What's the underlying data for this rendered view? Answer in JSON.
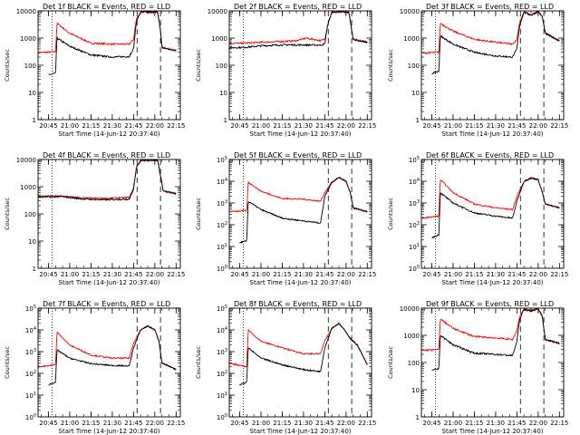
{
  "figure": {
    "xlabel": "Start Time (14-Jun-12 20:37:40)",
    "ylabel": "Counts/sec",
    "x_ticks": [
      "20:45",
      "21:00",
      "21:15",
      "21:30",
      "21:45",
      "22:00",
      "22:15"
    ],
    "colors": {
      "events": "#000000",
      "lld": "#ff0000",
      "axes": "#000000"
    }
  },
  "chart_data": [
    {
      "type": "line",
      "title": "Det 1f BLACK = Events, RED = LLD",
      "yscale": "log",
      "ylim": [
        1,
        10000
      ],
      "y_ticks": [
        "1",
        "10",
        "100",
        "1000",
        "10000"
      ],
      "xlim": [
        "20:37:40",
        "22:18:00"
      ],
      "dotted_x": [
        "20:47:30"
      ],
      "dashed_x": [
        "21:47:30",
        "22:04:00"
      ],
      "lld_points": [
        [
          "20:37:40",
          290
        ],
        [
          "20:50:00",
          310
        ],
        [
          "20:51:00",
          3500
        ],
        [
          "21:00:00",
          1500
        ],
        [
          "21:15:00",
          650
        ],
        [
          "21:30:00",
          600
        ],
        [
          "21:42:00",
          600
        ],
        [
          "21:45:00",
          900
        ],
        [
          "21:47:00",
          5000
        ],
        [
          "21:50:00",
          9000
        ],
        [
          "22:02:00",
          9000
        ],
        [
          "22:04:00",
          2000
        ],
        [
          "22:05:00",
          450
        ],
        [
          "22:15:00",
          350
        ]
      ],
      "events_points": [
        [
          "20:45:00",
          45
        ],
        [
          "20:50:00",
          50
        ],
        [
          "20:51:00",
          1000
        ],
        [
          "21:00:00",
          500
        ],
        [
          "21:15:00",
          240
        ],
        [
          "21:30:00",
          200
        ],
        [
          "21:42:00",
          210
        ],
        [
          "21:45:00",
          400
        ],
        [
          "21:47:00",
          4000
        ],
        [
          "21:50:00",
          9000
        ],
        [
          "22:02:00",
          9000
        ],
        [
          "22:04:00",
          2000
        ],
        [
          "22:05:00",
          450
        ],
        [
          "22:15:00",
          350
        ]
      ]
    },
    {
      "type": "line",
      "title": "Det 2f BLACK = Events, RED = LLD",
      "yscale": "log",
      "ylim": [
        1,
        10000
      ],
      "y_ticks": [
        "1",
        "10",
        "100",
        "1000",
        "10000"
      ],
      "xlim": [
        "20:37:40",
        "22:18:00"
      ],
      "dotted_x": [
        "20:47:30"
      ],
      "dashed_x": [
        "21:47:30",
        "22:04:00"
      ],
      "lld_points": [
        [
          "20:37:40",
          640
        ],
        [
          "20:50:00",
          650
        ],
        [
          "21:00:00",
          700
        ],
        [
          "21:15:00",
          750
        ],
        [
          "21:25:00",
          800
        ],
        [
          "21:32:00",
          1000
        ],
        [
          "21:42:00",
          800
        ],
        [
          "21:45:00",
          900
        ],
        [
          "21:47:00",
          3000
        ],
        [
          "21:50:00",
          9000
        ],
        [
          "22:02:00",
          9000
        ],
        [
          "22:04:00",
          2000
        ],
        [
          "22:05:00",
          900
        ],
        [
          "22:15:00",
          700
        ]
      ],
      "events_points": [
        [
          "20:37:40",
          440
        ],
        [
          "20:50:00",
          460
        ],
        [
          "21:00:00",
          520
        ],
        [
          "21:15:00",
          560
        ],
        [
          "21:30:00",
          560
        ],
        [
          "21:42:00",
          550
        ],
        [
          "21:45:00",
          600
        ],
        [
          "21:47:00",
          3000
        ],
        [
          "21:50:00",
          9000
        ],
        [
          "22:02:00",
          9000
        ],
        [
          "22:04:00",
          2000
        ],
        [
          "22:05:00",
          900
        ],
        [
          "22:15:00",
          700
        ]
      ]
    },
    {
      "type": "line",
      "title": "Det 3f BLACK = Events, RED = LLD",
      "yscale": "log",
      "ylim": [
        1,
        10000
      ],
      "y_ticks": [
        "1",
        "10",
        "100",
        "1000",
        "10000"
      ],
      "xlim": [
        "20:37:40",
        "22:18:00"
      ],
      "dotted_x": [
        "20:47:30"
      ],
      "dashed_x": [
        "21:47:30",
        "22:04:00"
      ],
      "lld_points": [
        [
          "20:37:40",
          280
        ],
        [
          "20:50:00",
          300
        ],
        [
          "20:51:00",
          3500
        ],
        [
          "21:00:00",
          1800
        ],
        [
          "21:15:00",
          900
        ],
        [
          "21:30:00",
          700
        ],
        [
          "21:42:00",
          600
        ],
        [
          "21:45:00",
          900
        ],
        [
          "21:47:00",
          4000
        ],
        [
          "21:50:00",
          9000
        ],
        [
          "21:55:00",
          7000
        ],
        [
          "22:00:00",
          9500
        ],
        [
          "22:03:00",
          6000
        ],
        [
          "22:05:00",
          1500
        ],
        [
          "22:15:00",
          800
        ]
      ],
      "events_points": [
        [
          "20:45:00",
          50
        ],
        [
          "20:50:00",
          60
        ],
        [
          "20:51:00",
          1200
        ],
        [
          "21:00:00",
          600
        ],
        [
          "21:15:00",
          300
        ],
        [
          "21:30:00",
          220
        ],
        [
          "21:42:00",
          200
        ],
        [
          "21:45:00",
          400
        ],
        [
          "21:47:00",
          3000
        ],
        [
          "21:50:00",
          9000
        ],
        [
          "21:55:00",
          7000
        ],
        [
          "22:00:00",
          9500
        ],
        [
          "22:03:00",
          6000
        ],
        [
          "22:05:00",
          1500
        ],
        [
          "22:15:00",
          800
        ]
      ]
    },
    {
      "type": "line",
      "title": "Det 4f BLACK = Events, RED = LLD",
      "yscale": "log",
      "ylim": [
        1,
        10000
      ],
      "y_ticks": [
        "1",
        "10",
        "100",
        "1000",
        "10000"
      ],
      "xlim": [
        "20:37:40",
        "22:18:00"
      ],
      "dotted_x": [
        "20:47:30"
      ],
      "dashed_x": [
        "21:47:30",
        "22:04:00"
      ],
      "lld_points": [
        [
          "20:37:40",
          450
        ],
        [
          "20:55:00",
          450
        ],
        [
          "21:10:00",
          380
        ],
        [
          "21:25:00",
          370
        ],
        [
          "21:42:00",
          400
        ],
        [
          "21:45:00",
          900
        ],
        [
          "21:47:00",
          5000
        ],
        [
          "21:50:00",
          9500
        ],
        [
          "22:02:00",
          9500
        ],
        [
          "22:04:00",
          2500
        ],
        [
          "22:06:00",
          700
        ],
        [
          "22:15:00",
          550
        ]
      ],
      "events_points": [
        [
          "20:37:40",
          420
        ],
        [
          "20:55:00",
          430
        ],
        [
          "21:10:00",
          350
        ],
        [
          "21:25:00",
          330
        ],
        [
          "21:42:00",
          350
        ],
        [
          "21:45:00",
          800
        ],
        [
          "21:47:00",
          5000
        ],
        [
          "21:50:00",
          9500
        ],
        [
          "22:02:00",
          9500
        ],
        [
          "22:04:00",
          2500
        ],
        [
          "22:06:00",
          700
        ],
        [
          "22:15:00",
          550
        ]
      ]
    },
    {
      "type": "line",
      "title": "Det 5f BLACK = Events, RED = LLD",
      "yscale": "log",
      "ylim": [
        1,
        100000
      ],
      "y_ticks": [
        "10^0",
        "10^1",
        "10^2",
        "10^3",
        "10^4",
        "10^5"
      ],
      "xlim": [
        "20:37:40",
        "22:18:00"
      ],
      "dotted_x": [
        "20:47:30"
      ],
      "dashed_x": [
        "21:47:30",
        "22:04:00"
      ],
      "lld_points": [
        [
          "20:37:40",
          400
        ],
        [
          "20:50:00",
          450
        ],
        [
          "20:51:00",
          9000
        ],
        [
          "21:00:00",
          3500
        ],
        [
          "21:15:00",
          1600
        ],
        [
          "21:30:00",
          1500
        ],
        [
          "21:42:00",
          1200
        ],
        [
          "21:45:00",
          3000
        ],
        [
          "21:50:00",
          9000
        ],
        [
          "21:55:00",
          15000
        ],
        [
          "22:00:00",
          10000
        ],
        [
          "22:03:00",
          3000
        ],
        [
          "22:05:00",
          600
        ],
        [
          "22:15:00",
          400
        ]
      ],
      "events_points": [
        [
          "20:45:00",
          15
        ],
        [
          "20:50:00",
          18
        ],
        [
          "20:51:00",
          1200
        ],
        [
          "21:00:00",
          500
        ],
        [
          "21:15:00",
          200
        ],
        [
          "21:30:00",
          150
        ],
        [
          "21:42:00",
          120
        ],
        [
          "21:45:00",
          2000
        ],
        [
          "21:50:00",
          9000
        ],
        [
          "21:55:00",
          15000
        ],
        [
          "22:00:00",
          10000
        ],
        [
          "22:03:00",
          3000
        ],
        [
          "22:05:00",
          600
        ],
        [
          "22:15:00",
          400
        ]
      ]
    },
    {
      "type": "line",
      "title": "Det 6f BLACK = Events, RED = LLD",
      "yscale": "log",
      "ylim": [
        1,
        100000
      ],
      "y_ticks": [
        "10^0",
        "10^1",
        "10^2",
        "10^3",
        "10^4",
        "10^5"
      ],
      "xlim": [
        "20:37:40",
        "22:18:00"
      ],
      "dotted_x": [
        "20:47:30"
      ],
      "dashed_x": [
        "21:47:30",
        "22:04:00"
      ],
      "lld_points": [
        [
          "20:37:40",
          200
        ],
        [
          "20:50:00",
          250
        ],
        [
          "20:51:00",
          12000
        ],
        [
          "21:00:00",
          3000
        ],
        [
          "21:15:00",
          900
        ],
        [
          "21:30:00",
          600
        ],
        [
          "21:42:00",
          500
        ],
        [
          "21:45:00",
          2000
        ],
        [
          "21:50:00",
          10000
        ],
        [
          "21:55:00",
          14000
        ],
        [
          "22:00:00",
          12000
        ],
        [
          "22:03:00",
          3000
        ],
        [
          "22:05:00",
          900
        ],
        [
          "22:15:00",
          600
        ]
      ],
      "events_points": [
        [
          "20:45:00",
          25
        ],
        [
          "20:50:00",
          35
        ],
        [
          "20:51:00",
          3000
        ],
        [
          "21:00:00",
          1000
        ],
        [
          "21:15:00",
          350
        ],
        [
          "21:30:00",
          250
        ],
        [
          "21:42:00",
          200
        ],
        [
          "21:45:00",
          1200
        ],
        [
          "21:50:00",
          10000
        ],
        [
          "21:55:00",
          14000
        ],
        [
          "22:00:00",
          12000
        ],
        [
          "22:03:00",
          3000
        ],
        [
          "22:05:00",
          900
        ],
        [
          "22:15:00",
          600
        ]
      ]
    },
    {
      "type": "line",
      "title": "Det 7f BLACK = Events, RED = LLD",
      "yscale": "log",
      "ylim": [
        1,
        100000
      ],
      "y_ticks": [
        "10^0",
        "10^1",
        "10^2",
        "10^3",
        "10^4",
        "10^5"
      ],
      "xlim": [
        "20:37:40",
        "22:18:00"
      ],
      "dotted_x": [
        "20:47:30"
      ],
      "dashed_x": [
        "21:47:30",
        "22:04:00"
      ],
      "lld_points": [
        [
          "20:37:40",
          200
        ],
        [
          "20:50:00",
          250
        ],
        [
          "20:51:00",
          8000
        ],
        [
          "21:00:00",
          2000
        ],
        [
          "21:15:00",
          700
        ],
        [
          "21:30:00",
          500
        ],
        [
          "21:42:00",
          500
        ],
        [
          "21:45:00",
          2500
        ],
        [
          "21:50:00",
          10000
        ],
        [
          "21:55:00",
          15000
        ],
        [
          "22:00:00",
          10000
        ],
        [
          "22:03:00",
          3000
        ],
        [
          "22:05:00",
          300
        ],
        [
          "22:15:00",
          150
        ]
      ],
      "events_points": [
        [
          "20:45:00",
          30
        ],
        [
          "20:50:00",
          40
        ],
        [
          "20:51:00",
          1200
        ],
        [
          "21:00:00",
          500
        ],
        [
          "21:15:00",
          280
        ],
        [
          "21:30:00",
          230
        ],
        [
          "21:42:00",
          220
        ],
        [
          "21:45:00",
          1500
        ],
        [
          "21:50:00",
          10000
        ],
        [
          "21:55:00",
          15000
        ],
        [
          "22:00:00",
          10000
        ],
        [
          "22:03:00",
          3000
        ],
        [
          "22:05:00",
          300
        ],
        [
          "22:15:00",
          150
        ]
      ]
    },
    {
      "type": "line",
      "title": "Det 8f BLACK = Events, RED = LLD",
      "yscale": "log",
      "ylim": [
        1,
        100000
      ],
      "y_ticks": [
        "10^0",
        "10^1",
        "10^2",
        "10^3",
        "10^4",
        "10^5"
      ],
      "xlim": [
        "20:37:40",
        "22:18:00"
      ],
      "dotted_x": [
        "20:47:30"
      ],
      "dashed_x": [
        "21:47:30",
        "22:04:00"
      ],
      "lld_points": [
        [
          "20:37:40",
          300
        ],
        [
          "20:50:00",
          200
        ],
        [
          "20:51:00",
          10000
        ],
        [
          "21:00:00",
          3000
        ],
        [
          "21:15:00",
          1500
        ],
        [
          "21:30:00",
          800
        ],
        [
          "21:42:00",
          800
        ],
        [
          "21:45:00",
          3000
        ],
        [
          "21:50:00",
          12000
        ],
        [
          "21:55:00",
          20000
        ],
        [
          "22:00:00",
          8000
        ],
        [
          "22:03:00",
          4000
        ],
        [
          "22:08:00",
          2000
        ],
        [
          "22:15:00",
          250
        ]
      ],
      "events_points": [
        [
          "20:45:00",
          30
        ],
        [
          "20:50:00",
          40
        ],
        [
          "20:51:00",
          1500
        ],
        [
          "21:00:00",
          500
        ],
        [
          "21:15:00",
          250
        ],
        [
          "21:30:00",
          150
        ],
        [
          "21:42:00",
          120
        ],
        [
          "21:45:00",
          1500
        ],
        [
          "21:50:00",
          12000
        ],
        [
          "21:55:00",
          20000
        ],
        [
          "22:00:00",
          8000
        ],
        [
          "22:03:00",
          4000
        ],
        [
          "22:08:00",
          2000
        ],
        [
          "22:15:00",
          250
        ]
      ]
    },
    {
      "type": "line",
      "title": "Det 9f BLACK = Events, RED = LLD",
      "yscale": "log",
      "ylim": [
        1,
        10000
      ],
      "y_ticks": [
        "1",
        "10",
        "100",
        "1000",
        "10000"
      ],
      "xlim": [
        "20:37:40",
        "22:18:00"
      ],
      "dotted_x": [
        "20:47:30"
      ],
      "dashed_x": [
        "21:47:30",
        "22:04:00"
      ],
      "lld_points": [
        [
          "20:37:40",
          280
        ],
        [
          "20:50:00",
          300
        ],
        [
          "20:51:00",
          4000
        ],
        [
          "21:00:00",
          1800
        ],
        [
          "21:15:00",
          900
        ],
        [
          "21:30:00",
          800
        ],
        [
          "21:42:00",
          700
        ],
        [
          "21:45:00",
          1500
        ],
        [
          "21:47:00",
          5000
        ],
        [
          "21:50:00",
          9000
        ],
        [
          "21:55:00",
          8000
        ],
        [
          "22:00:00",
          9500
        ],
        [
          "22:03:00",
          5000
        ],
        [
          "22:05:00",
          700
        ],
        [
          "22:15:00",
          500
        ]
      ],
      "events_points": [
        [
          "20:45:00",
          50
        ],
        [
          "20:50:00",
          60
        ],
        [
          "20:51:00",
          1000
        ],
        [
          "21:00:00",
          450
        ],
        [
          "21:15:00",
          220
        ],
        [
          "21:30:00",
          200
        ],
        [
          "21:42:00",
          180
        ],
        [
          "21:45:00",
          600
        ],
        [
          "21:47:00",
          4000
        ],
        [
          "21:50:00",
          9000
        ],
        [
          "21:55:00",
          8000
        ],
        [
          "22:00:00",
          9500
        ],
        [
          "22:03:00",
          5000
        ],
        [
          "22:05:00",
          700
        ],
        [
          "22:15:00",
          500
        ]
      ]
    }
  ]
}
